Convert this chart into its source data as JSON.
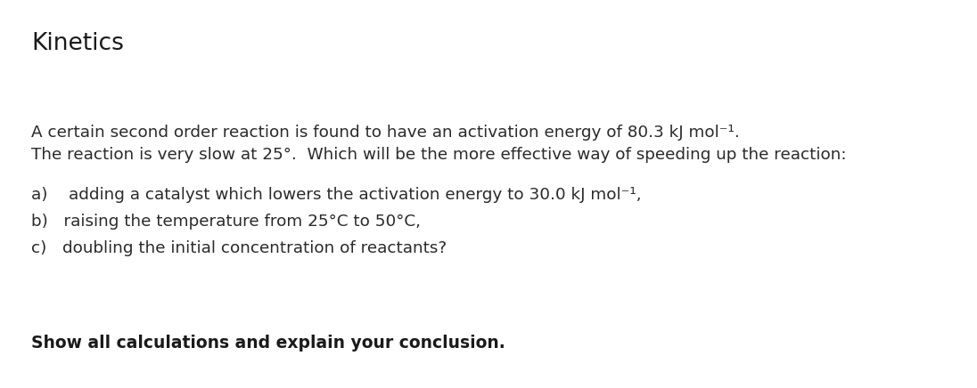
{
  "title": "Kinetics",
  "background_color": "#ffffff",
  "left_bar_color": "#c5d8ee",
  "title_fontsize": 19,
  "body_fontsize": 13.2,
  "bold_fontsize": 13.5,
  "title_font_weight": "normal",
  "line1": "A certain second order reaction is found to have an activation energy of 80.3 kJ mol⁻¹.",
  "line2": "The reaction is very slow at 25°.  Which will be the more effective way of speeding up the reaction:",
  "item_a": "a)    adding a catalyst which lowers the activation energy to 30.0 kJ mol⁻¹,",
  "item_b": "b)   raising the temperature from 25°C to 50°C,",
  "item_c": "c)   doubling the initial concentration of reactants?",
  "footer_text": "Show all calculations and explain your conclusion.",
  "text_color": "#2a2a2a",
  "title_color": "#1a1a1a",
  "font_family": "DejaVu Sans"
}
